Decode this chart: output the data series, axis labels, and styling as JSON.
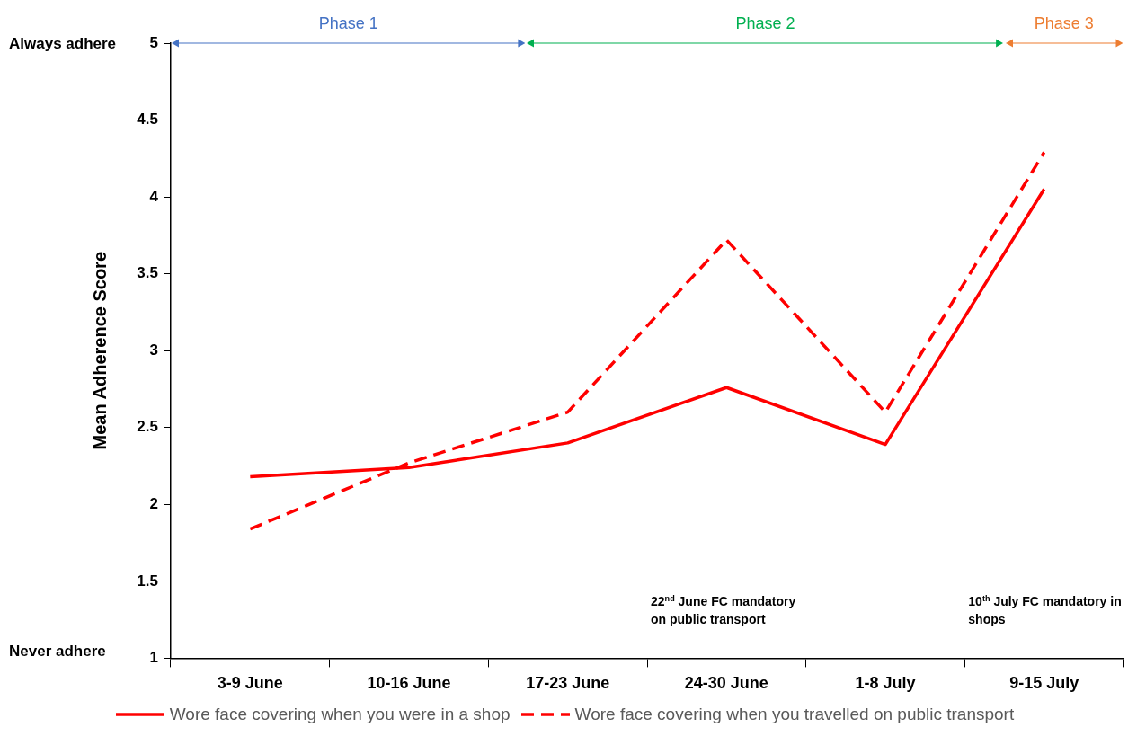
{
  "chart_data": {
    "type": "line",
    "ylabel": "Mean Adherence Score",
    "categories": [
      "3-9 June",
      "10-16 June",
      "17-23 June",
      "24-30 June",
      "1-8 July",
      "9-15 July"
    ],
    "series": [
      {
        "name": "Wore face covering when you were in a shop",
        "color": "#ff0000",
        "line_style": "solid",
        "values": [
          2.18,
          2.24,
          2.4,
          2.76,
          2.39,
          4.05
        ]
      },
      {
        "name": "Wore face covering when you travelled on public transport",
        "color": "#ff0000",
        "line_style": "dashed",
        "values": [
          1.84,
          2.27,
          2.6,
          3.72,
          2.6,
          4.29
        ]
      }
    ],
    "ylim": [
      1,
      5
    ],
    "yticks": [
      1,
      1.5,
      2,
      2.5,
      3,
      3.5,
      4,
      4.5,
      5
    ],
    "grid": false,
    "legend": "bottom",
    "marker": "none",
    "annotations": [
      "Phase 1",
      "Phase 2",
      "Phase 3",
      "Always adhere",
      "Never adhere",
      "22$^{nd}$ June FC mandatory on public transport",
      "10$^{th}$ July FC mandatory in shops"
    ]
  }
}
